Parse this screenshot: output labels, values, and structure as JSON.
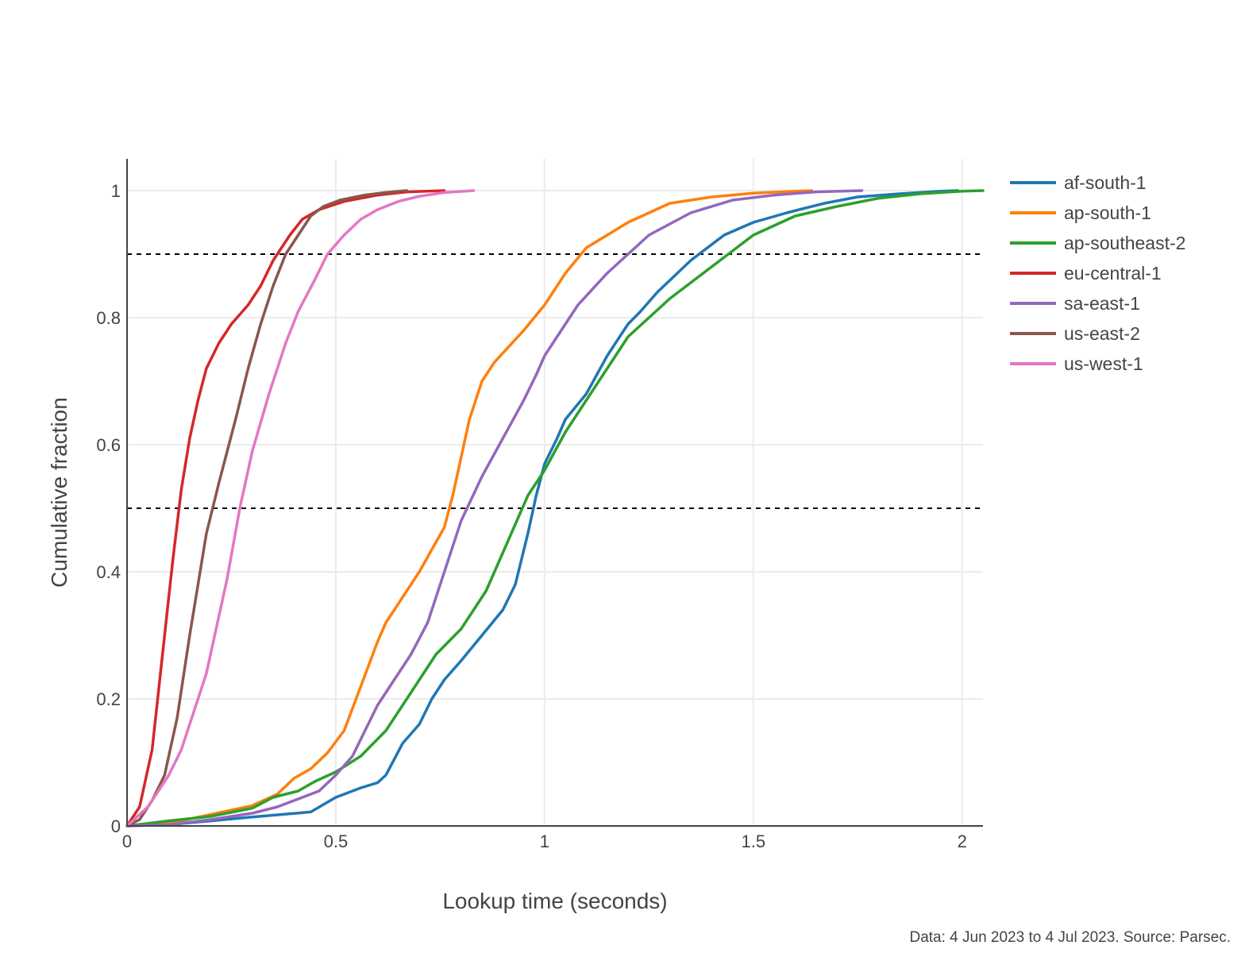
{
  "chart_data": {
    "type": "line",
    "title": "",
    "xlabel": "Lookup time (seconds)",
    "ylabel": "Cumulative fraction",
    "xlim": [
      0,
      2.05
    ],
    "ylim": [
      0,
      1.05
    ],
    "x_ticks": [
      0,
      0.5,
      1,
      1.5,
      2
    ],
    "x_tick_labels": [
      "0",
      "0.5",
      "1",
      "1.5",
      "2"
    ],
    "y_ticks": [
      0,
      0.2,
      0.4,
      0.6,
      0.8,
      1
    ],
    "y_tick_labels": [
      "0",
      "0.2",
      "0.4",
      "0.6",
      "0.8",
      "1"
    ],
    "grid": true,
    "legend_position": "top-right",
    "reference_lines": [
      {
        "axis": "y",
        "value": 0.5,
        "style": "dashed",
        "color": "#000000"
      },
      {
        "axis": "y",
        "value": 0.9,
        "style": "dashed",
        "color": "#000000"
      }
    ],
    "series": [
      {
        "name": "af-south-1",
        "color": "#1f77b4",
        "x": [
          0,
          0.1,
          0.2,
          0.3,
          0.44,
          0.5,
          0.56,
          0.6,
          0.62,
          0.66,
          0.7,
          0.73,
          0.76,
          0.8,
          0.85,
          0.9,
          0.93,
          0.96,
          0.98,
          1.0,
          1.03,
          1.05,
          1.1,
          1.15,
          1.2,
          1.23,
          1.27,
          1.35,
          1.43,
          1.5,
          1.58,
          1.67,
          1.75,
          1.85,
          1.95,
          1.99
        ],
        "y": [
          0,
          0.002,
          0.008,
          0.014,
          0.022,
          0.045,
          0.06,
          0.068,
          0.08,
          0.13,
          0.16,
          0.2,
          0.23,
          0.26,
          0.3,
          0.34,
          0.38,
          0.46,
          0.52,
          0.57,
          0.61,
          0.64,
          0.68,
          0.74,
          0.79,
          0.81,
          0.84,
          0.89,
          0.93,
          0.95,
          0.965,
          0.98,
          0.99,
          0.995,
          0.999,
          1.0
        ]
      },
      {
        "name": "ap-south-1",
        "color": "#ff7f0e",
        "x": [
          0,
          0.1,
          0.2,
          0.3,
          0.36,
          0.4,
          0.44,
          0.48,
          0.52,
          0.56,
          0.6,
          0.62,
          0.65,
          0.7,
          0.76,
          0.78,
          0.82,
          0.85,
          0.88,
          0.95,
          1.0,
          1.05,
          1.1,
          1.2,
          1.3,
          1.4,
          1.5,
          1.6,
          1.64
        ],
        "y": [
          0,
          0.004,
          0.018,
          0.032,
          0.05,
          0.075,
          0.09,
          0.115,
          0.15,
          0.22,
          0.29,
          0.32,
          0.35,
          0.4,
          0.47,
          0.52,
          0.64,
          0.7,
          0.73,
          0.78,
          0.82,
          0.87,
          0.91,
          0.95,
          0.98,
          0.99,
          0.996,
          0.999,
          1.0
        ]
      },
      {
        "name": "ap-southeast-2",
        "color": "#2ca02c",
        "x": [
          0,
          0.1,
          0.2,
          0.3,
          0.35,
          0.41,
          0.45,
          0.5,
          0.56,
          0.62,
          0.66,
          0.7,
          0.74,
          0.8,
          0.83,
          0.86,
          0.9,
          0.94,
          0.96,
          1.0,
          1.05,
          1.1,
          1.15,
          1.2,
          1.25,
          1.3,
          1.4,
          1.5,
          1.6,
          1.7,
          1.8,
          1.9,
          2.0,
          2.05
        ],
        "y": [
          0,
          0.008,
          0.015,
          0.028,
          0.045,
          0.055,
          0.07,
          0.085,
          0.11,
          0.15,
          0.19,
          0.23,
          0.27,
          0.31,
          0.34,
          0.37,
          0.43,
          0.49,
          0.52,
          0.56,
          0.62,
          0.67,
          0.72,
          0.77,
          0.8,
          0.83,
          0.88,
          0.93,
          0.96,
          0.975,
          0.988,
          0.995,
          0.999,
          1.0
        ]
      },
      {
        "name": "eu-central-1",
        "color": "#d62728",
        "x": [
          0,
          0.03,
          0.06,
          0.09,
          0.11,
          0.13,
          0.15,
          0.17,
          0.19,
          0.22,
          0.25,
          0.29,
          0.32,
          0.35,
          0.39,
          0.42,
          0.46,
          0.52,
          0.6,
          0.67,
          0.76
        ],
        "y": [
          0,
          0.03,
          0.12,
          0.3,
          0.42,
          0.53,
          0.61,
          0.67,
          0.72,
          0.76,
          0.79,
          0.82,
          0.85,
          0.89,
          0.93,
          0.955,
          0.97,
          0.983,
          0.993,
          0.998,
          1.0
        ]
      },
      {
        "name": "sa-east-1",
        "color": "#9467bd",
        "x": [
          0,
          0.1,
          0.2,
          0.3,
          0.36,
          0.42,
          0.46,
          0.5,
          0.54,
          0.57,
          0.6,
          0.64,
          0.68,
          0.72,
          0.75,
          0.8,
          0.85,
          0.9,
          0.95,
          0.98,
          1.0,
          1.03,
          1.08,
          1.15,
          1.25,
          1.35,
          1.45,
          1.55,
          1.65,
          1.76
        ],
        "y": [
          0,
          0.002,
          0.01,
          0.02,
          0.03,
          0.045,
          0.055,
          0.08,
          0.11,
          0.15,
          0.19,
          0.23,
          0.27,
          0.32,
          0.38,
          0.48,
          0.55,
          0.61,
          0.67,
          0.71,
          0.74,
          0.77,
          0.82,
          0.87,
          0.93,
          0.965,
          0.985,
          0.993,
          0.998,
          1.0
        ]
      },
      {
        "name": "us-east-2",
        "color": "#8c564b",
        "x": [
          0,
          0.03,
          0.06,
          0.09,
          0.12,
          0.15,
          0.17,
          0.19,
          0.22,
          0.26,
          0.29,
          0.32,
          0.35,
          0.38,
          0.41,
          0.44,
          0.47,
          0.51,
          0.57,
          0.62,
          0.67
        ],
        "y": [
          0,
          0.01,
          0.04,
          0.08,
          0.17,
          0.3,
          0.38,
          0.46,
          0.54,
          0.64,
          0.72,
          0.79,
          0.85,
          0.9,
          0.93,
          0.96,
          0.975,
          0.985,
          0.993,
          0.997,
          1.0
        ]
      },
      {
        "name": "us-west-1",
        "color": "#e377c2",
        "x": [
          0,
          0.05,
          0.1,
          0.13,
          0.15,
          0.17,
          0.19,
          0.21,
          0.24,
          0.27,
          0.3,
          0.34,
          0.38,
          0.41,
          0.45,
          0.48,
          0.52,
          0.56,
          0.6,
          0.65,
          0.7,
          0.76,
          0.83
        ],
        "y": [
          0,
          0.03,
          0.08,
          0.12,
          0.16,
          0.2,
          0.24,
          0.3,
          0.39,
          0.5,
          0.59,
          0.68,
          0.76,
          0.81,
          0.86,
          0.9,
          0.93,
          0.955,
          0.97,
          0.983,
          0.991,
          0.997,
          1.0
        ]
      }
    ]
  },
  "footer": {
    "source": "Data: 4 Jun 2023 to 4 Jul 2023. Source: Parsec."
  }
}
